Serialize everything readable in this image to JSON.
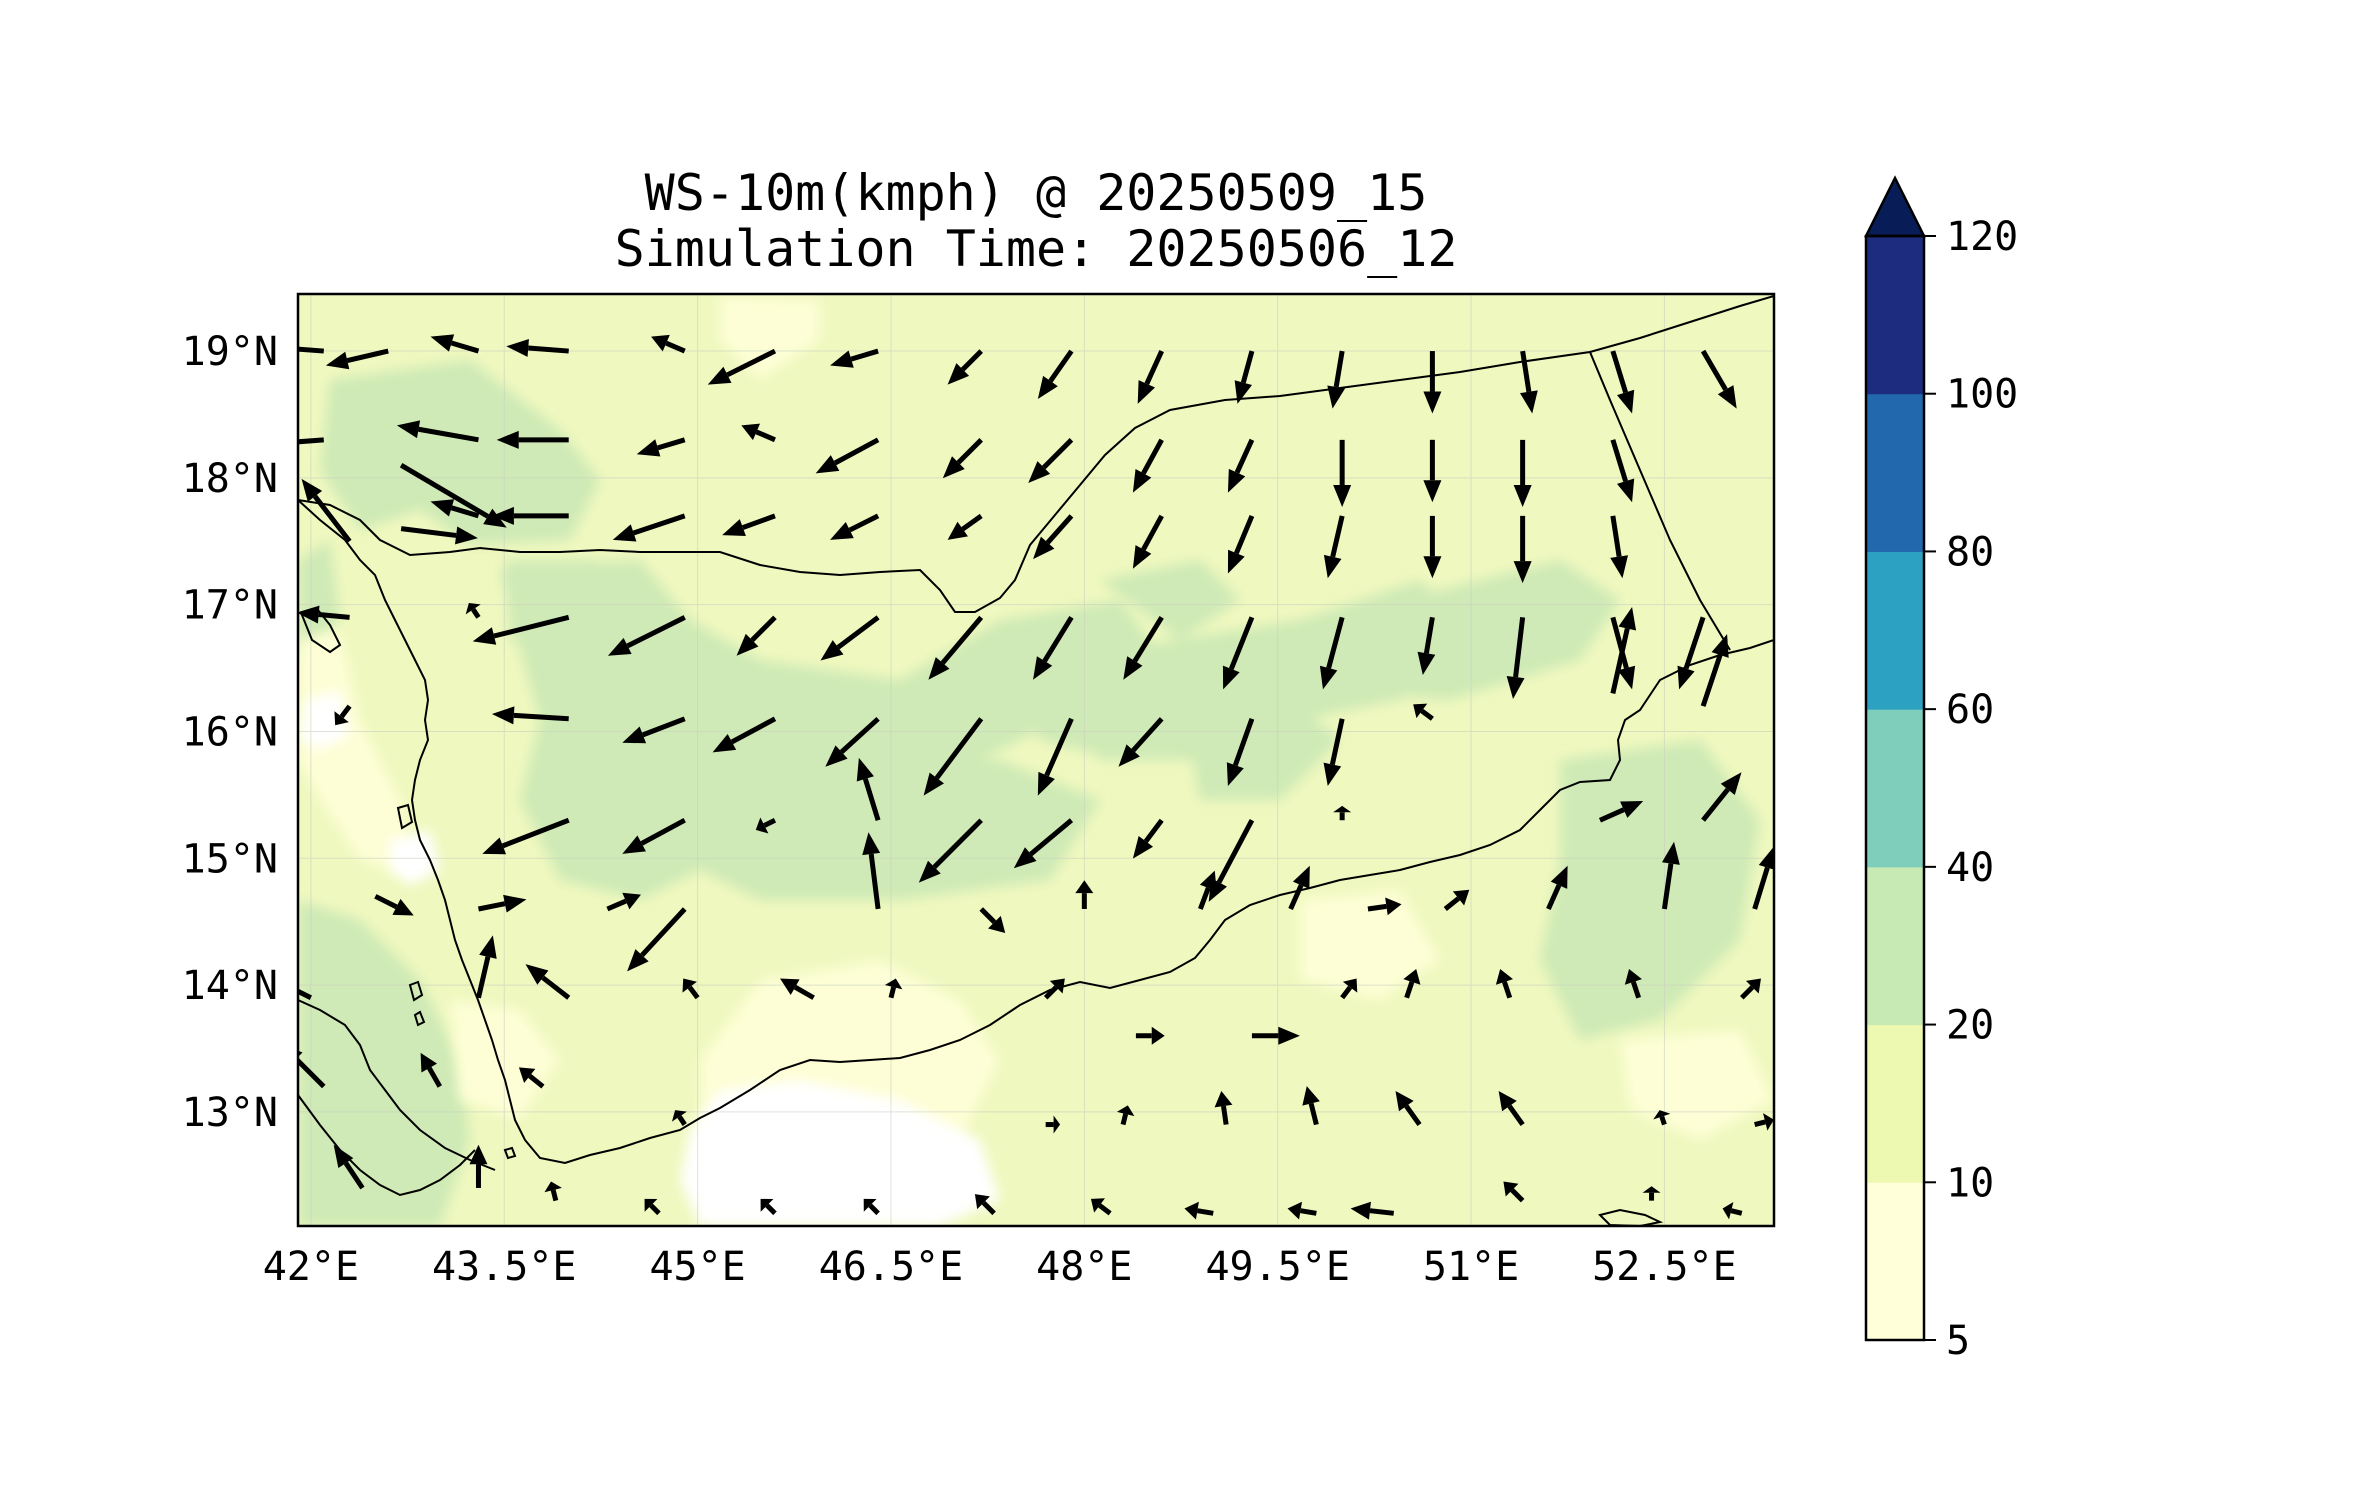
{
  "title_line1": "WS-10m(kmph) @ 20250509_15",
  "title_line2": "Simulation Time: 20250506_12",
  "map": {
    "lon_range": [
      41.9,
      53.35
    ],
    "lat_range": [
      12.1,
      19.45
    ],
    "lon_ticks": [
      "42°E",
      "43.5°E",
      "45°E",
      "46.5°E",
      "48°E",
      "49.5°E",
      "51°E",
      "52.5°E"
    ],
    "lon_tick_values": [
      42,
      43.5,
      45,
      46.5,
      48,
      49.5,
      51,
      52.5
    ],
    "lat_ticks": [
      "13°N",
      "14°N",
      "15°N",
      "16°N",
      "17°N",
      "18°N",
      "19°N"
    ],
    "lat_tick_values": [
      13,
      14,
      15,
      16,
      17,
      18,
      19
    ],
    "gridlines": true,
    "background_color": "#f0f9c3"
  },
  "colorbar": {
    "levels": [
      5,
      10,
      20,
      40,
      60,
      80,
      100,
      120
    ],
    "labels": [
      "5",
      "10",
      "20",
      "40",
      "60",
      "80",
      "100",
      "120"
    ],
    "colors": [
      "#ffffd9",
      "#edf8b1",
      "#c7e9b4",
      "#7fcdbb",
      "#2ca1c2",
      "#2168ac",
      "#1e2c80"
    ],
    "extend": "max",
    "extend_color": "#081d58"
  },
  "chart_data": {
    "type": "quiver",
    "description_units": "wind vectors as lon, lat, u, v (relative)",
    "vectors": [
      [
        42.1,
        19.0,
        -1.3,
        0.1
      ],
      [
        42.6,
        19.0,
        -1.3,
        -0.3
      ],
      [
        43.3,
        19.0,
        -1.0,
        0.3
      ],
      [
        44.0,
        19.0,
        -1.3,
        0.1
      ],
      [
        44.9,
        19.0,
        -0.7,
        0.3
      ],
      [
        45.6,
        19.0,
        -1.4,
        -0.7
      ],
      [
        46.4,
        19.0,
        -1.0,
        -0.3
      ],
      [
        47.2,
        19.0,
        -0.7,
        -0.7
      ],
      [
        47.9,
        19.0,
        -0.7,
        -1.0
      ],
      [
        48.6,
        19.0,
        -0.5,
        -1.1
      ],
      [
        49.3,
        19.0,
        -0.3,
        -1.1
      ],
      [
        50.0,
        19.0,
        -0.2,
        -1.2
      ],
      [
        50.7,
        19.0,
        0.0,
        -1.3
      ],
      [
        51.4,
        19.0,
        0.2,
        -1.3
      ],
      [
        52.1,
        19.0,
        0.4,
        -1.3
      ],
      [
        52.8,
        19.0,
        0.7,
        -1.2
      ],
      [
        42.1,
        18.3,
        -1.3,
        -0.1
      ],
      [
        43.3,
        18.3,
        -1.7,
        0.3
      ],
      [
        44.0,
        18.3,
        -1.5,
        0.0
      ],
      [
        44.9,
        18.3,
        -1.0,
        -0.3
      ],
      [
        45.6,
        18.3,
        -0.7,
        0.3
      ],
      [
        46.4,
        18.3,
        -1.3,
        -0.7
      ],
      [
        47.2,
        18.3,
        -0.8,
        -0.8
      ],
      [
        47.9,
        18.3,
        -0.9,
        -0.9
      ],
      [
        48.6,
        18.3,
        -0.6,
        -1.1
      ],
      [
        49.3,
        18.3,
        -0.5,
        -1.1
      ],
      [
        50.0,
        18.3,
        0.0,
        -1.4
      ],
      [
        50.7,
        18.3,
        0.0,
        -1.3
      ],
      [
        51.4,
        18.3,
        0.0,
        -1.4
      ],
      [
        52.1,
        18.3,
        0.4,
        -1.3
      ],
      [
        42.7,
        18.1,
        2.2,
        -1.3
      ],
      [
        43.3,
        17.7,
        -1.0,
        0.3
      ],
      [
        44.0,
        17.7,
        -1.6,
        0.0
      ],
      [
        44.9,
        17.7,
        -1.5,
        -0.5
      ],
      [
        45.6,
        17.7,
        -1.1,
        -0.4
      ],
      [
        46.4,
        17.7,
        -1.0,
        -0.5
      ],
      [
        47.2,
        17.7,
        -0.7,
        -0.5
      ],
      [
        47.9,
        17.7,
        -0.8,
        -0.9
      ],
      [
        48.6,
        17.7,
        -0.6,
        -1.1
      ],
      [
        49.3,
        17.7,
        -0.5,
        -1.2
      ],
      [
        50.0,
        17.7,
        -0.3,
        -1.3
      ],
      [
        50.7,
        17.7,
        0.0,
        -1.3
      ],
      [
        51.4,
        17.7,
        0.0,
        -1.4
      ],
      [
        52.1,
        17.7,
        0.2,
        -1.3
      ],
      [
        42.3,
        17.5,
        -1.0,
        1.3
      ],
      [
        42.7,
        17.6,
        1.6,
        -0.2
      ],
      [
        42.3,
        16.9,
        -1.1,
        0.1
      ],
      [
        44.0,
        16.9,
        -2.0,
        -0.5
      ],
      [
        44.9,
        16.9,
        -1.6,
        -0.8
      ],
      [
        45.6,
        16.9,
        -0.8,
        -0.8
      ],
      [
        46.4,
        16.9,
        -1.2,
        -0.9
      ],
      [
        47.2,
        16.9,
        -1.1,
        -1.3
      ],
      [
        47.9,
        16.9,
        -0.8,
        -1.3
      ],
      [
        48.6,
        16.9,
        -0.8,
        -1.3
      ],
      [
        49.3,
        16.9,
        -0.6,
        -1.5
      ],
      [
        50.0,
        16.9,
        -0.4,
        -1.5
      ],
      [
        50.7,
        16.9,
        -0.2,
        -1.2
      ],
      [
        51.4,
        16.9,
        -0.2,
        -1.7
      ],
      [
        52.1,
        16.9,
        0.4,
        -1.5
      ],
      [
        52.8,
        16.9,
        -0.5,
        -1.5
      ],
      [
        43.3,
        16.9,
        -0.2,
        0.3
      ],
      [
        42.3,
        16.2,
        -0.3,
        -0.4
      ],
      [
        44.0,
        16.1,
        -1.6,
        0.1
      ],
      [
        44.9,
        16.1,
        -1.3,
        -0.5
      ],
      [
        45.6,
        16.1,
        -1.3,
        -0.7
      ],
      [
        46.4,
        16.1,
        -1.1,
        -1.0
      ],
      [
        47.2,
        16.1,
        -1.2,
        -1.6
      ],
      [
        47.9,
        16.1,
        -0.7,
        -1.6
      ],
      [
        48.6,
        16.1,
        -0.9,
        -1.0
      ],
      [
        49.3,
        16.1,
        -0.5,
        -1.4
      ],
      [
        50.0,
        16.1,
        -0.3,
        -1.4
      ],
      [
        50.7,
        16.1,
        -0.4,
        0.3
      ],
      [
        52.1,
        16.3,
        0.4,
        1.8
      ],
      [
        52.8,
        16.2,
        0.5,
        1.5
      ],
      [
        44.0,
        15.3,
        -1.8,
        -0.7
      ],
      [
        44.9,
        15.3,
        -1.3,
        -0.7
      ],
      [
        45.6,
        15.3,
        -0.4,
        -0.2
      ],
      [
        46.4,
        15.3,
        -0.4,
        1.3
      ],
      [
        47.2,
        15.3,
        -1.3,
        -1.3
      ],
      [
        47.9,
        15.3,
        -1.2,
        -1.0
      ],
      [
        48.6,
        15.3,
        -0.6,
        -0.8
      ],
      [
        49.3,
        15.3,
        -0.9,
        -1.7
      ],
      [
        50.0,
        15.3,
        0.0,
        0.3
      ],
      [
        52.0,
        15.3,
        0.9,
        0.4
      ],
      [
        52.8,
        15.3,
        0.8,
        1.0
      ],
      [
        42.5,
        14.7,
        0.8,
        -0.4
      ],
      [
        43.3,
        14.6,
        1.0,
        0.2
      ],
      [
        44.3,
        14.6,
        0.7,
        0.3
      ],
      [
        44.9,
        14.6,
        -1.2,
        -1.3
      ],
      [
        46.4,
        14.6,
        -0.2,
        1.6
      ],
      [
        47.2,
        14.6,
        0.5,
        -0.5
      ],
      [
        48.0,
        14.6,
        0.0,
        0.6
      ],
      [
        48.9,
        14.6,
        0.3,
        0.8
      ],
      [
        49.6,
        14.6,
        0.4,
        0.9
      ],
      [
        50.2,
        14.6,
        0.7,
        0.1
      ],
      [
        50.8,
        14.6,
        0.5,
        0.4
      ],
      [
        51.6,
        14.6,
        0.4,
        0.9
      ],
      [
        52.5,
        14.6,
        0.2,
        1.4
      ],
      [
        53.2,
        14.6,
        0.4,
        1.3
      ],
      [
        42.0,
        13.9,
        -1.4,
        0.7
      ],
      [
        43.3,
        13.9,
        0.3,
        1.3
      ],
      [
        44.0,
        13.9,
        -0.9,
        0.7
      ],
      [
        45.0,
        13.9,
        -0.3,
        0.4
      ],
      [
        45.9,
        13.9,
        -0.7,
        0.4
      ],
      [
        46.5,
        13.9,
        0.1,
        0.4
      ],
      [
        47.7,
        13.9,
        0.4,
        0.4
      ],
      [
        48.4,
        13.6,
        0.6,
        0.0
      ],
      [
        49.3,
        13.6,
        1.0,
        0.0
      ],
      [
        50.0,
        13.9,
        0.3,
        0.4
      ],
      [
        50.5,
        13.9,
        0.2,
        0.6
      ],
      [
        51.3,
        13.9,
        -0.2,
        0.6
      ],
      [
        52.3,
        13.9,
        -0.2,
        0.6
      ],
      [
        53.1,
        13.9,
        0.4,
        0.4
      ],
      [
        42.1,
        13.2,
        -0.9,
        0.9
      ],
      [
        43.0,
        13.2,
        -0.4,
        0.7
      ],
      [
        43.8,
        13.2,
        -0.5,
        0.4
      ],
      [
        44.9,
        12.9,
        -0.2,
        0.3
      ],
      [
        47.7,
        12.9,
        0.3,
        0.0
      ],
      [
        48.3,
        12.9,
        0.1,
        0.4
      ],
      [
        49.1,
        12.9,
        -0.1,
        0.7
      ],
      [
        49.8,
        12.9,
        -0.2,
        0.8
      ],
      [
        50.6,
        12.9,
        -0.5,
        0.7
      ],
      [
        51.4,
        12.9,
        -0.5,
        0.7
      ],
      [
        52.5,
        12.9,
        -0.1,
        0.3
      ],
      [
        53.2,
        12.9,
        0.4,
        0.1
      ],
      [
        42.4,
        12.4,
        -0.6,
        0.9
      ],
      [
        43.3,
        12.4,
        0.0,
        0.9
      ],
      [
        43.9,
        12.3,
        -0.1,
        0.4
      ],
      [
        44.7,
        12.2,
        -0.3,
        0.3
      ],
      [
        45.6,
        12.2,
        -0.3,
        0.3
      ],
      [
        46.4,
        12.2,
        -0.3,
        0.3
      ],
      [
        47.3,
        12.2,
        -0.4,
        0.4
      ],
      [
        48.2,
        12.2,
        -0.4,
        0.3
      ],
      [
        49.0,
        12.2,
        -0.6,
        0.1
      ],
      [
        49.8,
        12.2,
        -0.6,
        0.1
      ],
      [
        50.4,
        12.2,
        -0.9,
        0.1
      ],
      [
        51.4,
        12.3,
        -0.4,
        0.4
      ],
      [
        52.4,
        12.3,
        0.0,
        0.3
      ],
      [
        53.1,
        12.2,
        -0.4,
        0.1
      ]
    ]
  }
}
